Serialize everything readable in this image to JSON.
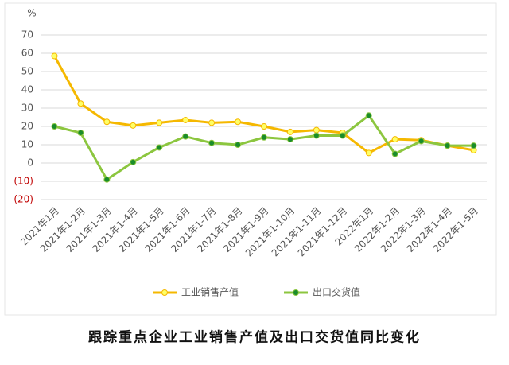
{
  "chart_data": {
    "type": "line",
    "title": "跟踪重点企业工业销售产值及出口交货值同比变化",
    "y_unit": "%",
    "categories": [
      "2021年1月",
      "2021年1-2月",
      "2021年1-3月",
      "2021年1-4月",
      "2021年1-5月",
      "2021年1-6月",
      "2021年1-7月",
      "2021年1-8月",
      "2021年1-9月",
      "2021年1-10月",
      "2021年1-11月",
      "2021年1-12月",
      "2022年1月",
      "2022年1-2月",
      "2022年1-3月",
      "2022年1-4月",
      "2022年1-5月"
    ],
    "series": [
      {
        "name": "工业销售产值",
        "color": "#f5b800",
        "marker_fill": "#ffff66",
        "values": [
          58.5,
          32.5,
          22.5,
          20.5,
          22,
          23.5,
          22,
          22.5,
          20,
          17,
          18,
          16.5,
          5.5,
          13,
          12.5,
          9.5,
          7
        ]
      },
      {
        "name": "出口交货值",
        "color": "#8cc63f",
        "marker_fill": "#1a8c2a",
        "values": [
          20,
          16.5,
          -9,
          0.5,
          8.5,
          14.5,
          11,
          10,
          14,
          13,
          15,
          15,
          26,
          5,
          12,
          9.5,
          9.5
        ]
      }
    ],
    "ylim": [
      -20,
      70
    ],
    "yticks": [
      {
        "value": -20,
        "label": "(20)"
      },
      {
        "value": -10,
        "label": "(10)"
      },
      0,
      10,
      20,
      30,
      40,
      50,
      60,
      70
    ],
    "negative_tick_color": "#c00000",
    "grid": true,
    "legend": "bottom"
  }
}
